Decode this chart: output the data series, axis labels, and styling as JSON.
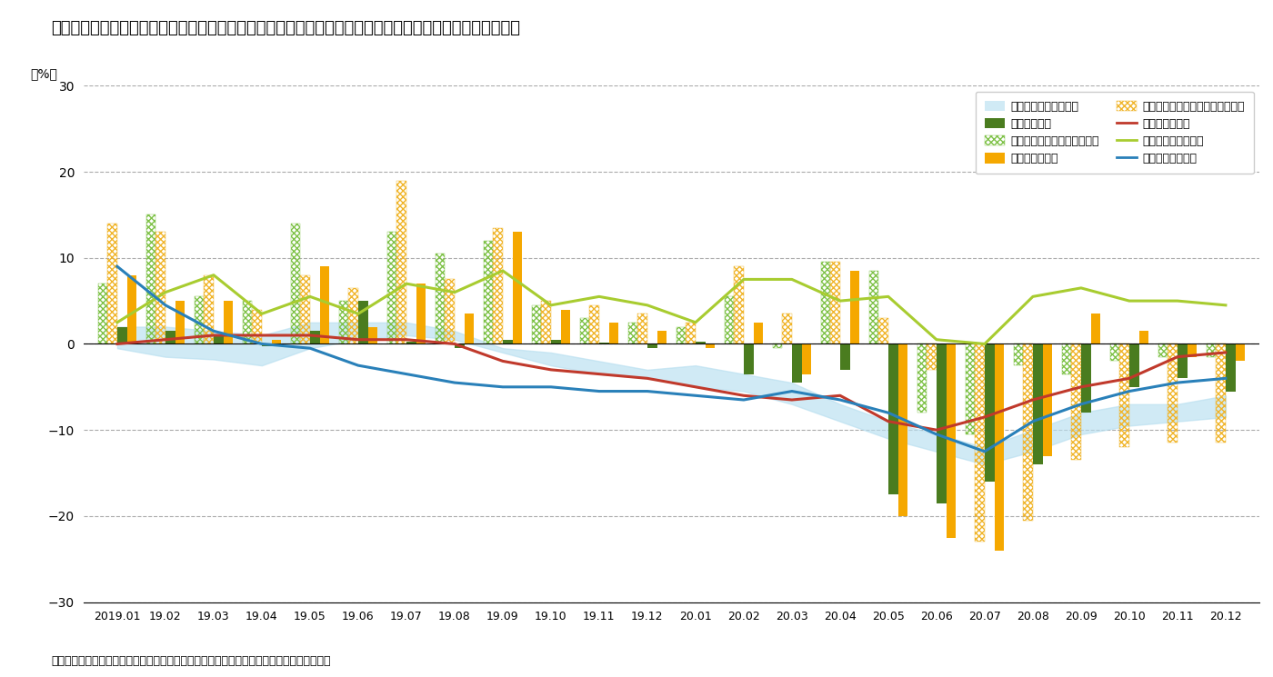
{
  "title": "新設木造住宅着工戸数、製材・合板工場における素材入荷量・製品出荷量、素材価格の推移（前年同月比）",
  "ylabel": "（%）",
  "source": "資料：農林水産省「木材統計調査」、「木材価格統計調査」、国土交通省「住宅着工統計」",
  "xlabels": [
    "2019.01",
    "19.02",
    "19.03",
    "19.04",
    "19.05",
    "19.06",
    "19.07",
    "19.08",
    "19.09",
    "19.10",
    "19.11",
    "19.12",
    "20.01",
    "20.02",
    "20.03",
    "20.04",
    "20.05",
    "20.06",
    "20.07",
    "20.08",
    "20.09",
    "20.10",
    "20.11",
    "20.12"
  ],
  "ylim": [
    -30,
    30
  ],
  "yticks": [
    -30,
    -20,
    -10,
    0,
    10,
    20,
    30
  ],
  "shinsetsu_lower": [
    -0.5,
    -1.5,
    -1.8,
    -2.5,
    -0.5,
    0.5,
    1.0,
    0.5,
    -1.0,
    -2.5,
    -3.5,
    -4.0,
    -5.0,
    -5.5,
    -7.0,
    -9.0,
    -11.0,
    -12.5,
    -14.0,
    -12.5,
    -10.5,
    -9.5,
    -9.0,
    -8.5
  ],
  "shinsetsu_upper": [
    2.0,
    2.0,
    1.5,
    1.0,
    2.5,
    2.5,
    2.5,
    1.5,
    -0.5,
    -1.0,
    -2.0,
    -3.0,
    -2.5,
    -3.5,
    -4.5,
    -7.0,
    -9.0,
    -10.5,
    -12.0,
    -10.0,
    -8.0,
    -7.0,
    -7.0,
    -6.0
  ],
  "seizai_nyuka_bar": [
    7.0,
    15.0,
    5.5,
    5.0,
    14.0,
    5.0,
    13.0,
    10.5,
    12.0,
    4.5,
    3.0,
    2.5,
    2.0,
    5.5,
    -0.5,
    9.5,
    8.5,
    -8.0,
    -10.5,
    -2.5,
    -3.5,
    -2.0,
    -1.5,
    -1.5
  ],
  "tanban_nyuka_bar": [
    14.0,
    13.0,
    8.0,
    4.0,
    8.0,
    6.5,
    19.0,
    7.5,
    13.5,
    5.0,
    4.5,
    3.5,
    2.5,
    9.0,
    3.5,
    9.5,
    3.0,
    -3.0,
    -23.0,
    -20.5,
    -13.5,
    -12.0,
    -11.5,
    -11.5
  ],
  "seizai_bar": [
    2.0,
    1.5,
    1.0,
    -0.3,
    1.5,
    5.0,
    0.3,
    -0.5,
    0.5,
    0.5,
    0.2,
    -0.5,
    0.3,
    -3.5,
    -4.5,
    -3.0,
    -17.5,
    -18.5,
    -16.0,
    -14.0,
    -8.0,
    -5.0,
    -4.0,
    -5.5
  ],
  "gohan_bar": [
    8.0,
    5.0,
    5.0,
    0.5,
    9.0,
    2.0,
    7.0,
    3.5,
    13.0,
    4.0,
    2.5,
    1.5,
    -0.5,
    2.5,
    -3.5,
    8.5,
    -20.0,
    -22.5,
    -24.0,
    -13.0,
    3.5,
    1.5,
    -1.5,
    -2.0
  ],
  "sugi_line": [
    0.0,
    0.5,
    1.0,
    1.0,
    1.0,
    0.5,
    0.5,
    0.0,
    -2.0,
    -3.0,
    -3.5,
    -4.0,
    -5.0,
    -6.0,
    -6.5,
    -6.0,
    -9.0,
    -10.0,
    -8.5,
    -6.5,
    -5.0,
    -4.0,
    -1.5,
    -1.0
  ],
  "hinoki_line": [
    9.0,
    4.5,
    1.5,
    0.0,
    -0.5,
    -2.5,
    -3.5,
    -4.5,
    -5.0,
    -5.0,
    -5.5,
    -5.5,
    -6.0,
    -6.5,
    -5.5,
    -6.5,
    -8.0,
    -10.5,
    -12.5,
    -9.0,
    -7.0,
    -5.5,
    -4.5,
    -4.0
  ],
  "karamatsu_line": [
    2.5,
    6.0,
    8.0,
    3.5,
    5.5,
    3.5,
    7.0,
    6.0,
    8.5,
    4.5,
    5.5,
    4.5,
    2.5,
    7.5,
    7.5,
    5.0,
    5.5,
    0.5,
    0.0,
    5.5,
    6.5,
    5.0,
    5.0,
    4.5
  ],
  "colors": {
    "shinsetsu_fill": "#b8dff0",
    "seizai_bar": "#4a7c1f",
    "gohan_bar": "#f5a800",
    "seizai_nyuka_edge": "#7dc146",
    "tanban_nyuka_edge": "#f0b429",
    "sugi_line": "#c0392b",
    "hinoki_line": "#2980b9",
    "karamatsu_line": "#a8cc30"
  },
  "legend_labels": [
    "新設木造住宅着工戸数",
    "製材品出荷量",
    "製材用素材入荷量（国産材）",
    "普通合板出荷量",
    "単板製造用素材入荷量（国産材）",
    "スギ中丸太価格",
    "カラマツ中丸太価格",
    "ヒノキ中丸太価格"
  ]
}
